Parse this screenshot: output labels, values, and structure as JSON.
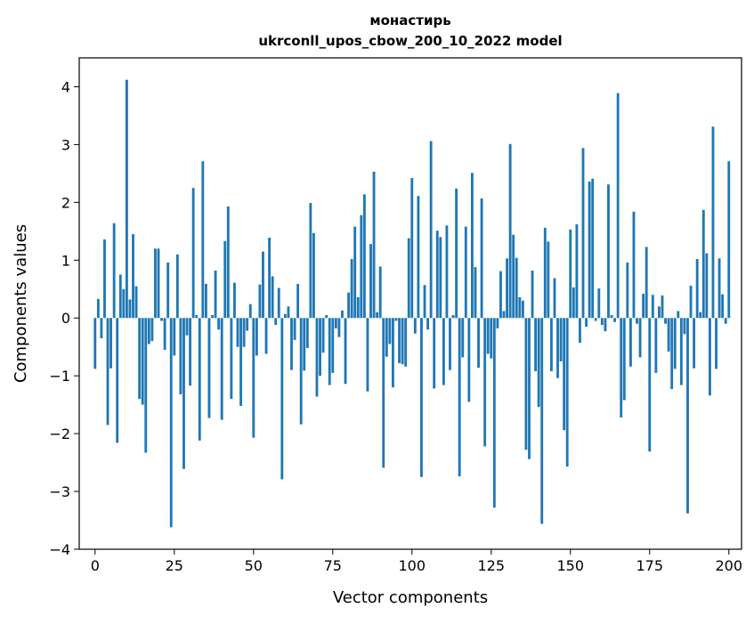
{
  "chart_data": {
    "type": "bar",
    "title": "монастирь",
    "subtitle": "ukrconll_upos_cbow_200_10_2022 model",
    "xlabel": "Vector components",
    "ylabel": "Components values",
    "xlim": [
      -5,
      204
    ],
    "ylim": [
      -4,
      4.5
    ],
    "xticks": [
      0,
      25,
      50,
      75,
      100,
      125,
      150,
      175,
      200
    ],
    "yticks": [
      -4,
      -3,
      -2,
      -1,
      0,
      1,
      2,
      3,
      4
    ],
    "grid": false,
    "bar_color": "#1f77b4",
    "values": [
      -0.88,
      0.33,
      -0.35,
      1.36,
      -1.85,
      -0.87,
      1.64,
      -2.16,
      0.75,
      0.5,
      4.12,
      0.32,
      1.45,
      0.55,
      -1.4,
      -1.5,
      -2.33,
      -0.45,
      -0.4,
      1.2,
      1.2,
      -0.05,
      -0.55,
      0.96,
      -3.62,
      -0.65,
      1.1,
      -1.32,
      -2.61,
      -0.3,
      -1.17,
      2.25,
      0.05,
      -2.12,
      2.71,
      0.59,
      -1.73,
      0.05,
      0.82,
      -0.2,
      -1.76,
      1.33,
      1.93,
      -1.4,
      0.61,
      -0.5,
      -1.52,
      -0.5,
      -0.22,
      0.24,
      -2.07,
      -0.65,
      0.58,
      1.15,
      -0.62,
      1.39,
      0.72,
      -0.12,
      0.52,
      -2.79,
      0.07,
      0.2,
      -0.9,
      -0.38,
      0.59,
      -1.84,
      -0.91,
      -0.52,
      1.99,
      1.47,
      -1.36,
      -1.0,
      -0.6,
      0.05,
      -1.16,
      -0.95,
      -0.18,
      -0.33,
      0.13,
      -1.14,
      0.44,
      1.02,
      1.58,
      0.36,
      1.78,
      2.14,
      -1.27,
      1.28,
      2.53,
      0.1,
      0.89,
      -2.59,
      -0.67,
      -0.45,
      -1.2,
      -0.05,
      -0.78,
      -0.8,
      -0.84,
      1.38,
      2.42,
      -0.27,
      2.11,
      -2.75,
      0.57,
      -0.2,
      3.06,
      -1.22,
      1.51,
      1.4,
      -1.16,
      1.6,
      -0.9,
      0.05,
      2.24,
      -2.74,
      -0.68,
      1.58,
      -1.45,
      2.51,
      0.88,
      -0.86,
      2.07,
      -2.22,
      -0.62,
      -0.7,
      -3.28,
      -0.18,
      0.81,
      0.12,
      1.03,
      3.01,
      1.44,
      1.04,
      0.36,
      0.3,
      -2.28,
      -2.44,
      0.82,
      -0.92,
      -1.54,
      -3.56,
      1.56,
      1.32,
      -0.92,
      0.69,
      -1.04,
      -0.75,
      -1.94,
      -2.57,
      1.53,
      0.53,
      1.62,
      -0.43,
      2.94,
      -0.15,
      2.36,
      2.41,
      -0.05,
      0.51,
      -0.12,
      -0.23,
      2.31,
      0.05,
      -0.07,
      3.89,
      -1.72,
      -1.42,
      0.96,
      -0.84,
      1.84,
      -0.1,
      -0.68,
      0.42,
      1.23,
      -2.31,
      0.4,
      -0.95,
      0.2,
      0.39,
      -0.1,
      -0.58,
      -1.23,
      -0.88,
      0.12,
      -1.16,
      -0.28,
      -3.38,
      0.56,
      -0.87,
      1.02,
      0.1,
      1.87,
      1.12,
      -1.34,
      3.31,
      -0.88,
      1.03,
      0.41,
      -0.1,
      2.71
    ]
  }
}
